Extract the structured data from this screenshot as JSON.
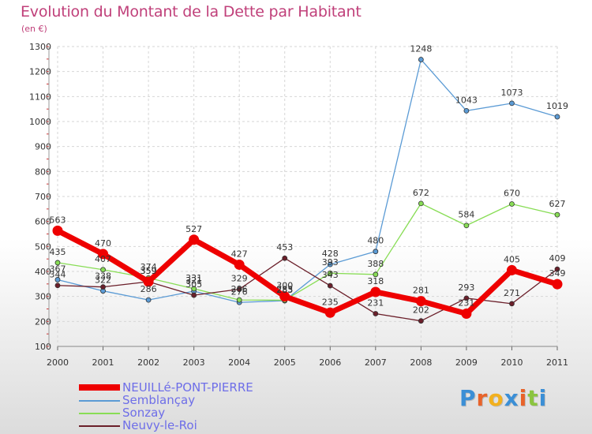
{
  "title": "Evolution du Montant de la Dette par Habitant",
  "subtitle": "(en €)",
  "logo": {
    "text": "Proxiti",
    "colors": [
      "#3b8fd6",
      "#e8632a",
      "#f2b01e",
      "#3b8fd6",
      "#e8632a",
      "#8bc43f",
      "#3b8fd6"
    ]
  },
  "chart_data": {
    "type": "line",
    "title": "Evolution du Montant de la Dette par Habitant",
    "subtitle": "(en €)",
    "xlabel": "",
    "ylabel": "",
    "ylim": [
      100,
      1300
    ],
    "yticks": [
      100,
      200,
      300,
      400,
      500,
      600,
      700,
      800,
      900,
      1000,
      1100,
      1200,
      1300
    ],
    "grid": true,
    "legend_position": "bottom-left",
    "categories": [
      "2000",
      "2001",
      "2002",
      "2003",
      "2004",
      "2005",
      "2006",
      "2007",
      "2008",
      "2009",
      "2010",
      "2011"
    ],
    "series": [
      {
        "name": "NEUILLé-PONT-PIERRE",
        "color": "#ee0000",
        "emphasis": true,
        "values": [
          563,
          470,
          359,
          527,
          427,
          300,
          235,
          318,
          281,
          231,
          405,
          349
        ]
      },
      {
        "name": "Semblançay",
        "color": "#5b9bd5",
        "emphasis": false,
        "values": [
          367,
          322,
          286,
          321,
          276,
          283,
          428,
          480,
          1248,
          1043,
          1073,
          1019
        ]
      },
      {
        "name": "Sonzay",
        "color": "#88dd55",
        "emphasis": false,
        "values": [
          435,
          407,
          374,
          331,
          286,
          285,
          393,
          388,
          672,
          584,
          670,
          627
        ]
      },
      {
        "name": "Neuvy-le-Roi",
        "color": "#6b1f2a",
        "emphasis": false,
        "values": [
          344,
          338,
          359,
          305,
          329,
          453,
          343,
          231,
          202,
          293,
          271,
          409
        ]
      }
    ],
    "data_labels": [
      {
        "series": 0,
        "i": 0,
        "text": "563"
      },
      {
        "series": 0,
        "i": 1,
        "text": "470"
      },
      {
        "series": 0,
        "i": 2,
        "text": "359"
      },
      {
        "series": 0,
        "i": 3,
        "text": "527"
      },
      {
        "series": 0,
        "i": 4,
        "text": "427"
      },
      {
        "series": 0,
        "i": 5,
        "text": "300"
      },
      {
        "series": 0,
        "i": 6,
        "text": "235"
      },
      {
        "series": 0,
        "i": 7,
        "text": "318"
      },
      {
        "series": 0,
        "i": 8,
        "text": "281"
      },
      {
        "series": 0,
        "i": 9,
        "text": "231"
      },
      {
        "series": 0,
        "i": 10,
        "text": "405"
      },
      {
        "series": 0,
        "i": 11,
        "text": "349"
      },
      {
        "series": 1,
        "i": 0,
        "text": "367"
      },
      {
        "series": 1,
        "i": 1,
        "text": "322"
      },
      {
        "series": 1,
        "i": 2,
        "text": "286"
      },
      {
        "series": 1,
        "i": 3,
        "text": "321"
      },
      {
        "series": 1,
        "i": 4,
        "text": "276"
      },
      {
        "series": 1,
        "i": 5,
        "text": "283"
      },
      {
        "series": 1,
        "i": 6,
        "text": "428"
      },
      {
        "series": 1,
        "i": 7,
        "text": "480"
      },
      {
        "series": 1,
        "i": 8,
        "text": "1248"
      },
      {
        "series": 1,
        "i": 9,
        "text": "1043"
      },
      {
        "series": 1,
        "i": 10,
        "text": "1073"
      },
      {
        "series": 1,
        "i": 11,
        "text": "1019"
      },
      {
        "series": 2,
        "i": 0,
        "text": "435"
      },
      {
        "series": 2,
        "i": 1,
        "text": "407"
      },
      {
        "series": 2,
        "i": 2,
        "text": "374"
      },
      {
        "series": 2,
        "i": 3,
        "text": "331"
      },
      {
        "series": 2,
        "i": 4,
        "text": "286"
      },
      {
        "series": 2,
        "i": 5,
        "text": "285"
      },
      {
        "series": 2,
        "i": 6,
        "text": "393"
      },
      {
        "series": 2,
        "i": 7,
        "text": "388"
      },
      {
        "series": 2,
        "i": 8,
        "text": "672"
      },
      {
        "series": 2,
        "i": 9,
        "text": "584"
      },
      {
        "series": 2,
        "i": 10,
        "text": "670"
      },
      {
        "series": 2,
        "i": 11,
        "text": "627"
      },
      {
        "series": 3,
        "i": 0,
        "text": "344"
      },
      {
        "series": 3,
        "i": 1,
        "text": "338"
      },
      {
        "series": 3,
        "i": 2,
        "text": "359"
      },
      {
        "series": 3,
        "i": 3,
        "text": "305"
      },
      {
        "series": 3,
        "i": 4,
        "text": "329"
      },
      {
        "series": 3,
        "i": 5,
        "text": "453"
      },
      {
        "series": 3,
        "i": 6,
        "text": "343"
      },
      {
        "series": 3,
        "i": 7,
        "text": "231"
      },
      {
        "series": 3,
        "i": 8,
        "text": "202"
      },
      {
        "series": 3,
        "i": 9,
        "text": "293"
      },
      {
        "series": 3,
        "i": 10,
        "text": "271"
      },
      {
        "series": 3,
        "i": 11,
        "text": "409"
      }
    ]
  }
}
